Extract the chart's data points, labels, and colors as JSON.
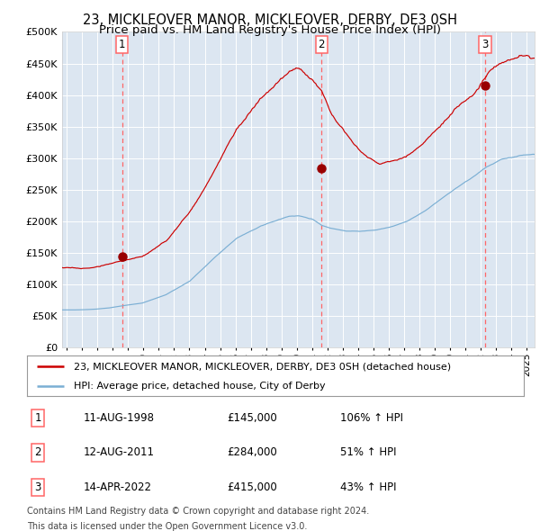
{
  "title": "23, MICKLEOVER MANOR, MICKLEOVER, DERBY, DE3 0SH",
  "subtitle": "Price paid vs. HM Land Registry's House Price Index (HPI)",
  "background_color": "#dce6f1",
  "plot_bg_color": "#dce6f1",
  "red_line_color": "#cc0000",
  "blue_line_color": "#7bafd4",
  "marker_color": "#990000",
  "vline_color": "#ff6666",
  "grid_color": "#c8d4e8",
  "title_fontsize": 10.5,
  "subtitle_fontsize": 9.5,
  "purchases": [
    {
      "label": "1",
      "date_num": 1998.61,
      "price": 145000,
      "pct": "106%",
      "date_str": "11-AUG-1998"
    },
    {
      "label": "2",
      "date_num": 2011.61,
      "price": 284000,
      "pct": "51%",
      "date_str": "12-AUG-2011"
    },
    {
      "label": "3",
      "date_num": 2022.28,
      "price": 415000,
      "pct": "43%",
      "date_str": "14-APR-2022"
    }
  ],
  "legend_line1": "23, MICKLEOVER MANOR, MICKLEOVER, DERBY, DE3 0SH (detached house)",
  "legend_line2": "HPI: Average price, detached house, City of Derby",
  "footer_line1": "Contains HM Land Registry data © Crown copyright and database right 2024.",
  "footer_line2": "This data is licensed under the Open Government Licence v3.0.",
  "ylim": [
    0,
    500000
  ],
  "xlim_start": 1994.7,
  "xlim_end": 2025.5,
  "red_profile_t": [
    0,
    0.04,
    0.07,
    0.1,
    0.13,
    0.17,
    0.22,
    0.27,
    0.32,
    0.37,
    0.42,
    0.45,
    0.48,
    0.5,
    0.53,
    0.55,
    0.57,
    0.6,
    0.63,
    0.67,
    0.7,
    0.73,
    0.77,
    0.8,
    0.83,
    0.87,
    0.9,
    0.93,
    0.97,
    1.0
  ],
  "red_profile_v": [
    127000,
    125000,
    127000,
    132000,
    138000,
    143000,
    165000,
    210000,
    270000,
    340000,
    385000,
    405000,
    425000,
    430000,
    415000,
    395000,
    365000,
    340000,
    310000,
    290000,
    295000,
    305000,
    330000,
    350000,
    375000,
    400000,
    430000,
    445000,
    455000,
    450000
  ],
  "blue_profile_t": [
    0,
    0.04,
    0.07,
    0.1,
    0.13,
    0.17,
    0.22,
    0.27,
    0.32,
    0.37,
    0.42,
    0.45,
    0.48,
    0.5,
    0.53,
    0.55,
    0.57,
    0.6,
    0.63,
    0.67,
    0.7,
    0.73,
    0.77,
    0.8,
    0.83,
    0.87,
    0.9,
    0.93,
    0.97,
    1.0
  ],
  "blue_profile_v": [
    60000,
    60000,
    61000,
    63000,
    67000,
    71000,
    84000,
    105000,
    140000,
    173000,
    192000,
    200000,
    207000,
    208000,
    202000,
    192000,
    187000,
    183000,
    182000,
    185000,
    190000,
    198000,
    215000,
    232000,
    248000,
    268000,
    285000,
    295000,
    300000,
    302000
  ]
}
